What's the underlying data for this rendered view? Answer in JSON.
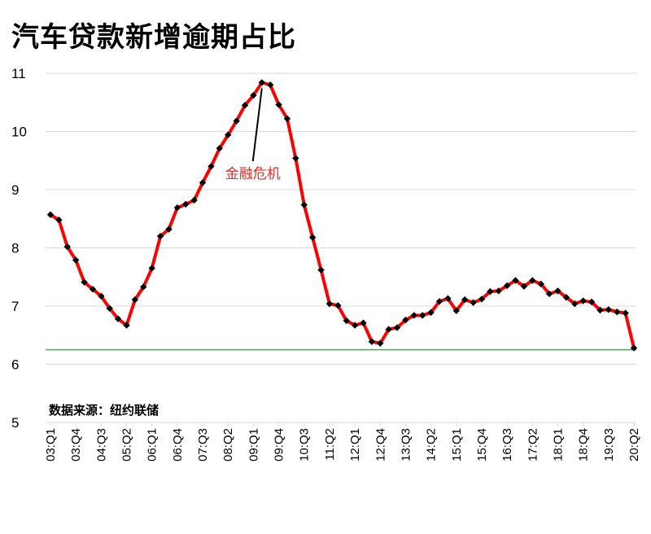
{
  "chart_data": {
    "type": "line",
    "title": "汽车贷款新增逾期占比",
    "source": "数据来源：纽约联储",
    "xlabel": "",
    "ylabel": "",
    "ylim": [
      5,
      11
    ],
    "yticks": [
      5,
      6,
      7,
      8,
      9,
      10,
      11
    ],
    "grid": true,
    "tick_labels": [
      "03:Q1",
      "03:Q4",
      "04:Q3",
      "05:Q2",
      "06:Q1",
      "06:Q4",
      "07:Q3",
      "08:Q2",
      "09:Q1",
      "09:Q4",
      "10:Q3",
      "11:Q2",
      "12:Q1",
      "12:Q4",
      "13:Q3",
      "14:Q2",
      "15:Q1",
      "15:Q4",
      "16:Q3",
      "17:Q2",
      "18:Q1",
      "18:Q4",
      "19:Q3",
      "20:Q2"
    ],
    "x": [
      "03:Q1",
      "03:Q2",
      "03:Q3",
      "03:Q4",
      "04:Q1",
      "04:Q2",
      "04:Q3",
      "04:Q4",
      "05:Q1",
      "05:Q2",
      "05:Q3",
      "05:Q4",
      "06:Q1",
      "06:Q2",
      "06:Q3",
      "06:Q4",
      "07:Q1",
      "07:Q2",
      "07:Q3",
      "07:Q4",
      "08:Q1",
      "08:Q2",
      "08:Q3",
      "08:Q4",
      "09:Q1",
      "09:Q2",
      "09:Q3",
      "09:Q4",
      "10:Q1",
      "10:Q2",
      "10:Q3",
      "10:Q4",
      "11:Q1",
      "11:Q2",
      "11:Q3",
      "11:Q4",
      "12:Q1",
      "12:Q2",
      "12:Q3",
      "12:Q4",
      "13:Q1",
      "13:Q2",
      "13:Q3",
      "13:Q4",
      "14:Q1",
      "14:Q2",
      "14:Q3",
      "14:Q4",
      "15:Q1",
      "15:Q2",
      "15:Q3",
      "15:Q4",
      "16:Q1",
      "16:Q2",
      "16:Q3",
      "16:Q4",
      "17:Q1",
      "17:Q2",
      "17:Q3",
      "17:Q4",
      "18:Q1",
      "18:Q2",
      "18:Q3",
      "18:Q4",
      "19:Q1",
      "19:Q2",
      "19:Q3",
      "19:Q4",
      "20:Q1",
      "20:Q2"
    ],
    "series": [
      {
        "values": [
          8.57,
          8.48,
          8.02,
          7.79,
          7.41,
          7.29,
          7.17,
          6.96,
          6.78,
          6.67,
          7.11,
          7.33,
          7.65,
          8.2,
          8.32,
          8.69,
          8.75,
          8.82,
          9.12,
          9.4,
          9.71,
          9.94,
          10.18,
          10.45,
          10.62,
          10.84,
          10.8,
          10.46,
          10.22,
          9.54,
          8.74,
          8.18,
          7.62,
          7.04,
          7.01,
          6.75,
          6.67,
          6.71,
          6.39,
          6.36,
          6.6,
          6.63,
          6.76,
          6.84,
          6.84,
          6.89,
          7.08,
          7.13,
          6.92,
          7.11,
          7.06,
          7.12,
          7.25,
          7.26,
          7.35,
          7.44,
          7.34,
          7.44,
          7.38,
          7.21,
          7.26,
          7.15,
          7.04,
          7.09,
          7.07,
          6.93,
          6.94,
          6.9,
          6.88,
          6.28
        ]
      }
    ],
    "reference_line": {
      "value": 6.25,
      "color": "#3cb043"
    },
    "line_color": "#ff0000",
    "marker_color": "#000000",
    "annotation": {
      "text": "金融危机",
      "at": "09:Q2",
      "color": "#e0302a"
    }
  }
}
